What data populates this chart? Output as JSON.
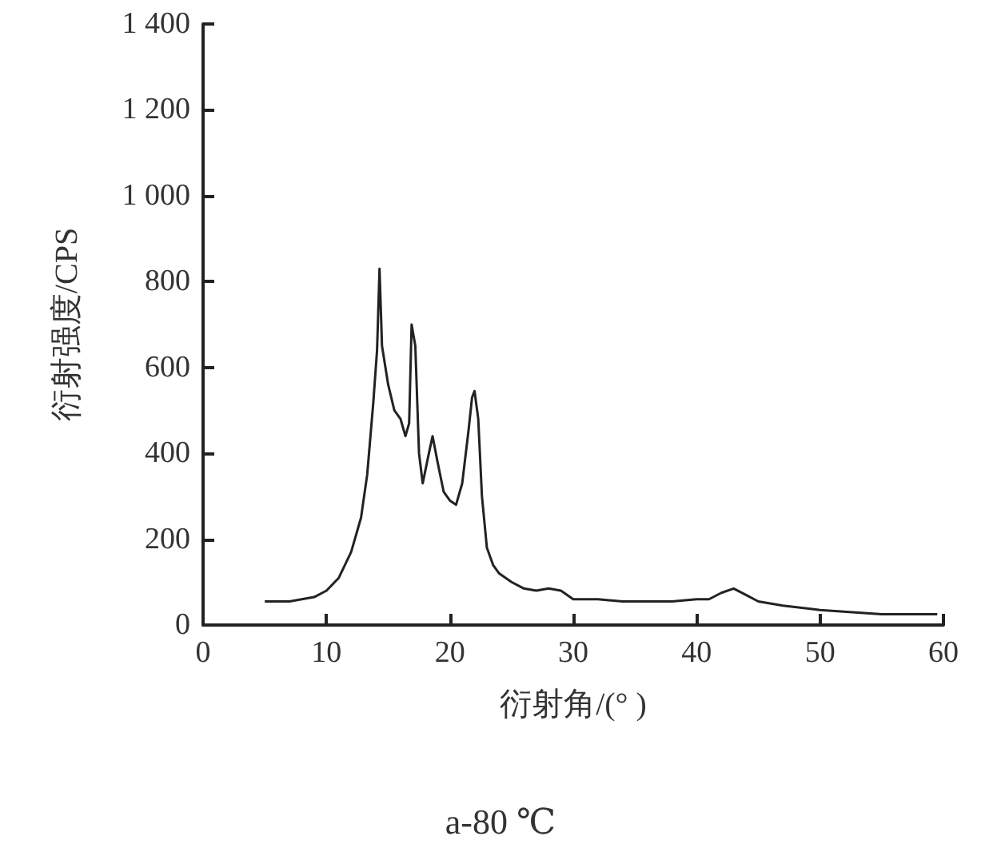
{
  "chart_data": {
    "type": "line",
    "title": "a-80 ℃",
    "xlabel": "衍射角/(° )",
    "ylabel": "衍射强度/CPS",
    "x": [
      5,
      7,
      9,
      10,
      11,
      12,
      12.8,
      13.3,
      13.8,
      14.1,
      14.3,
      14.5,
      15,
      15.5,
      16,
      16.4,
      16.7,
      16.9,
      17.2,
      17.5,
      17.8,
      18.3,
      18.6,
      19,
      19.5,
      20,
      20.5,
      21,
      21.5,
      21.8,
      22,
      22.3,
      22.6,
      23,
      23.5,
      24,
      25,
      26,
      27,
      28,
      29,
      30,
      32,
      34,
      36,
      38,
      40,
      41,
      42,
      43,
      44,
      45,
      47,
      50,
      55,
      59.5
    ],
    "series": [
      {
        "color": "#222222",
        "values": [
          55,
          55,
          65,
          80,
          110,
          170,
          250,
          350,
          520,
          640,
          830,
          650,
          560,
          500,
          480,
          440,
          470,
          700,
          650,
          400,
          330,
          400,
          440,
          380,
          310,
          290,
          280,
          330,
          450,
          530,
          545,
          480,
          300,
          180,
          140,
          120,
          100,
          85,
          80,
          85,
          80,
          60,
          60,
          55,
          55,
          55,
          60,
          60,
          75,
          85,
          70,
          55,
          45,
          35,
          25,
          25
        ]
      }
    ],
    "xlim": [
      0,
      60
    ],
    "xticks": [
      0,
      10,
      20,
      30,
      40,
      50,
      60
    ],
    "ylim": [
      0,
      1400
    ],
    "yticks": [
      0,
      200,
      400,
      600,
      800,
      {
        "value": 1000,
        "label": "1 000"
      },
      {
        "value": 1200,
        "label": "1 200"
      },
      {
        "value": 1400,
        "label": "1 400"
      }
    ],
    "grid": false,
    "marker": "none",
    "line_style": "solid"
  }
}
